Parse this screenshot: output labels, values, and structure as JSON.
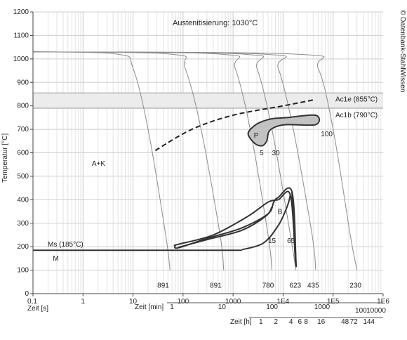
{
  "chart_data": {
    "type": "line",
    "subtype": "CCT diagram (continuous cooling transformation)",
    "title": "Austenitisierung: 1030°C",
    "watermark": "© Datenbank-StahlWissen",
    "ylabel": "Temperatur [°C]",
    "ylim": [
      0,
      1200
    ],
    "y_ticks": [
      0,
      100,
      200,
      300,
      400,
      500,
      600,
      700,
      800,
      900,
      1000,
      1100,
      1200
    ],
    "xscale": "log",
    "xlim_seconds": [
      0.1,
      1000000
    ],
    "grid": true,
    "axes": [
      {
        "label": "Zeit [s]",
        "unit": "s",
        "ticks": [
          {
            "label": "0,1",
            "seconds": 0.1
          },
          {
            "label": "1",
            "seconds": 1
          },
          {
            "label": "10",
            "seconds": 10
          },
          {
            "label": "100",
            "seconds": 100
          },
          {
            "label": "1000",
            "seconds": 1000
          },
          {
            "label": "1E4",
            "seconds": 10000
          },
          {
            "label": "1E5",
            "seconds": 100000
          },
          {
            "label": "1E6",
            "seconds": 1000000
          }
        ]
      },
      {
        "label": "Zeit [min]",
        "unit": "min",
        "ticks": [
          {
            "label": "1",
            "seconds": 60
          },
          {
            "label": "10",
            "seconds": 600
          },
          {
            "label": "100",
            "seconds": 6000
          },
          {
            "label": "1000",
            "seconds": 60000
          }
        ]
      },
      {
        "label": "Zeit [h]",
        "unit": "h",
        "ticks_top": [
          {
            "label": "100",
            "seconds": 360000
          },
          {
            "label": "10000",
            "seconds": 36000000
          }
        ],
        "ticks_bottom": [
          {
            "label": "1",
            "seconds": 3600
          },
          {
            "label": "2",
            "seconds": 7200
          },
          {
            "label": "4",
            "seconds": 14400
          },
          {
            "label": "6",
            "seconds": 21600
          },
          {
            "label": "8",
            "seconds": 28800
          },
          {
            "label": "16",
            "seconds": 57600
          },
          {
            "label": "48",
            "seconds": 172800
          },
          {
            "label": "72",
            "seconds": 259200
          },
          {
            "label": "144",
            "seconds": 518400
          }
        ]
      }
    ],
    "reference_lines": [
      {
        "label": "Ac1e (855°C)",
        "temperature": 855
      },
      {
        "label": "Ac1b (790°C)",
        "temperature": 790
      },
      {
        "label": "Ms (185°C)",
        "temperature": 185
      }
    ],
    "region_labels": [
      {
        "text": "A+K",
        "t": 1.5,
        "T": 545
      },
      {
        "text": "P",
        "t": 2600,
        "T": 665
      },
      {
        "text": "B",
        "t": 7800,
        "T": 340
      },
      {
        "text": "M",
        "t": 0.25,
        "T": 140
      }
    ],
    "phase_percent_labels": [
      {
        "text": "5",
        "t": 3400,
        "T": 590
      },
      {
        "text": "30",
        "t": 6000,
        "T": 590
      },
      {
        "text": "100",
        "t": 57000,
        "T": 670
      },
      {
        "text": "15",
        "t": 5000,
        "T": 215
      },
      {
        "text": "65",
        "t": 12000,
        "T": 215
      }
    ],
    "hardness_labels": [
      {
        "text": "891",
        "t": 40
      },
      {
        "text": "891",
        "t": 450
      },
      {
        "text": "780",
        "t": 5000
      },
      {
        "text": "623",
        "t": 17500
      },
      {
        "text": "435",
        "t": 40000
      },
      {
        "text": "230",
        "t": 280000
      }
    ],
    "cooling_curves": [
      {
        "end_label": "891",
        "points": [
          [
            0.1,
            1030
          ],
          [
            5,
            1020
          ],
          [
            10,
            960
          ],
          [
            20,
            700
          ],
          [
            45,
            250
          ],
          [
            55,
            100
          ]
        ]
      },
      {
        "end_label": "891",
        "points": [
          [
            0.1,
            1030
          ],
          [
            60,
            1020
          ],
          [
            110,
            960
          ],
          [
            230,
            700
          ],
          [
            550,
            250
          ],
          [
            650,
            100
          ]
        ]
      },
      {
        "end_label": "780",
        "points": [
          [
            0.1,
            1030
          ],
          [
            600,
            1020
          ],
          [
            1100,
            960
          ],
          [
            2200,
            700
          ],
          [
            5000,
            250
          ],
          [
            6000,
            100
          ]
        ]
      },
      {
        "end_label": "623",
        "points": [
          [
            0.1,
            1030
          ],
          [
            1700,
            1020
          ],
          [
            3000,
            960
          ],
          [
            6000,
            700
          ],
          [
            14000,
            250
          ],
          [
            18000,
            100
          ]
        ]
      },
      {
        "end_label": "435",
        "points": [
          [
            0.1,
            1030
          ],
          [
            4500,
            1020
          ],
          [
            8000,
            960
          ],
          [
            16000,
            700
          ],
          [
            38000,
            250
          ],
          [
            45000,
            100
          ]
        ]
      },
      {
        "end_label": "230",
        "points": [
          [
            0.1,
            1030
          ],
          [
            20000,
            1020
          ],
          [
            50000,
            960
          ],
          [
            100000,
            700
          ],
          [
            220000,
            250
          ],
          [
            300000,
            100
          ]
        ]
      }
    ],
    "dashed_curve": {
      "points": [
        [
          28,
          610
        ],
        [
          150,
          700
        ],
        [
          1000,
          760
        ],
        [
          10000,
          800
        ],
        [
          40000,
          825
        ]
      ]
    },
    "pearlite_region": {
      "points": [
        [
          2000,
          680
        ],
        [
          2500,
          710
        ],
        [
          3500,
          730
        ],
        [
          6000,
          745
        ],
        [
          12000,
          750
        ],
        [
          45000,
          760
        ],
        [
          45000,
          720
        ],
        [
          12000,
          720
        ],
        [
          7000,
          710
        ],
        [
          5200,
          690
        ],
        [
          4700,
          650
        ],
        [
          3800,
          630
        ],
        [
          2700,
          640
        ]
      ]
    },
    "bainite_nose": {
      "points": [
        [
          80,
          210
        ],
        [
          70,
          205
        ],
        [
          80,
          195
        ],
        [
          300,
          235
        ],
        [
          1500,
          280
        ],
        [
          5000,
          340
        ],
        [
          6500,
          390
        ],
        [
          8000,
          410
        ],
        [
          15000,
          435
        ],
        [
          18000,
          150
        ],
        [
          17500,
          150
        ],
        [
          14000,
          420
        ],
        [
          8000,
          400
        ],
        [
          5000,
          390
        ],
        [
          2000,
          330
        ],
        [
          400,
          250
        ]
      ]
    },
    "bainite_inner": {
      "points": [
        [
          80,
          197
        ],
        [
          300,
          230
        ],
        [
          1500,
          270
        ],
        [
          4500,
          330
        ],
        [
          6000,
          370
        ]
      ]
    },
    "bainite_lower": {
      "points": [
        [
          1500,
          187
        ],
        [
          4000,
          215
        ],
        [
          8000,
          290
        ],
        [
          12000,
          370
        ],
        [
          14000,
          420
        ]
      ]
    },
    "martensite_line": {
      "points": [
        [
          0.1,
          185
        ],
        [
          1500,
          185
        ]
      ]
    },
    "bainite_finish_line": {
      "points": [
        [
          15000,
          435
        ],
        [
          18000,
          150
        ]
      ]
    }
  }
}
